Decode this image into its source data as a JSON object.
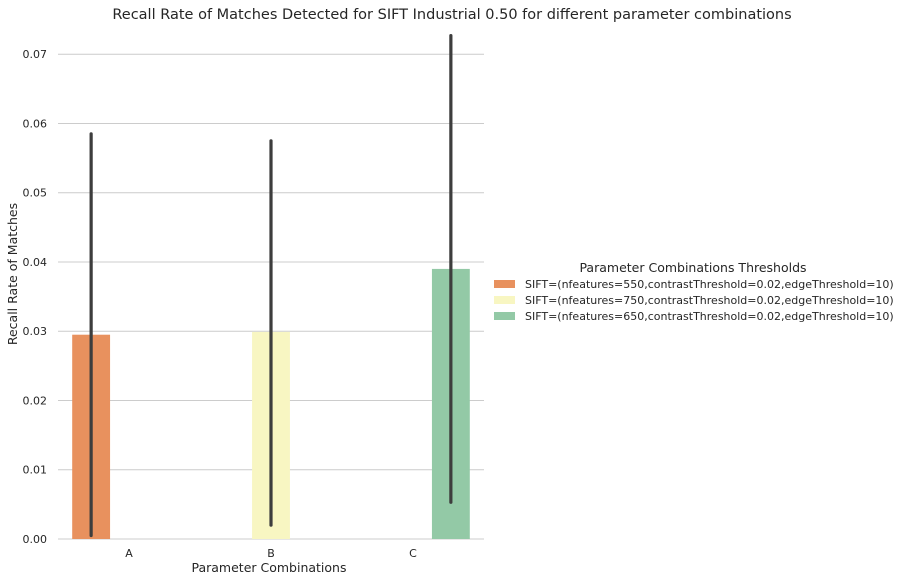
{
  "chart_data": {
    "type": "bar",
    "title": "Recall Rate of Matches Detected for SIFT Industrial 0.50 for different parameter combinations",
    "xlabel": "Parameter Combinations",
    "ylabel": "Recall Rate of Matches",
    "categories": [
      "A",
      "B",
      "C"
    ],
    "ylim": [
      0,
      0.0735
    ],
    "yticks": [
      0.0,
      0.01,
      0.02,
      0.03,
      0.04,
      0.05,
      0.06,
      0.07
    ],
    "ytick_labels": [
      "0.00",
      "0.01",
      "0.02",
      "0.03",
      "0.04",
      "0.05",
      "0.06",
      "0.07"
    ],
    "grid": "horizontal",
    "legend_position": "right",
    "legend_title": "Parameter Combinations Thresholds",
    "series": [
      {
        "name": "SIFT=(nfeatures=550,contrastThreshold=0.02,edgeThreshold=10)",
        "color": "#e8915e",
        "values": [
          0.0295,
          0,
          0
        ],
        "error_low": [
          0.0005,
          null,
          null
        ],
        "error_high": [
          0.0585,
          null,
          null
        ]
      },
      {
        "name": "SIFT=(nfeatures=750,contrastThreshold=0.02,edgeThreshold=10)",
        "color": "#f8f6c2",
        "values": [
          0,
          0.0299,
          0
        ],
        "error_low": [
          null,
          0.002,
          null
        ],
        "error_high": [
          null,
          0.0575,
          null
        ]
      },
      {
        "name": "SIFT=(nfeatures=650,contrastThreshold=0.02,edgeThreshold=10)",
        "color": "#93c9a6",
        "values": [
          0,
          0,
          0.039
        ],
        "error_low": [
          null,
          null,
          0.0053
        ],
        "error_high": [
          null,
          null,
          0.0727
        ]
      }
    ]
  }
}
